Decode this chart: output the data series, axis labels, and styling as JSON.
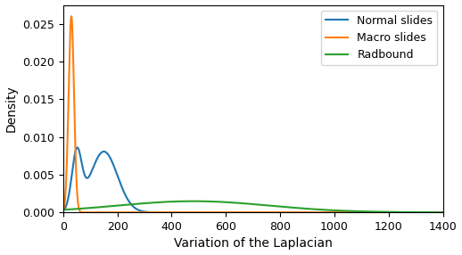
{
  "title": "",
  "xlabel": "Variation of the Laplacian",
  "ylabel": "Density",
  "xlim": [
    0,
    1400
  ],
  "ylim": [
    0,
    0.0275
  ],
  "yticks": [
    0.0,
    0.005,
    0.01,
    0.015,
    0.02,
    0.025
  ],
  "xticks": [
    0,
    200,
    400,
    600,
    800,
    1000,
    1200,
    1400
  ],
  "legend_labels": [
    "Normal slides",
    "Macro slides",
    "Radbound"
  ],
  "colors": [
    "#1f77b4",
    "#ff7f0e",
    "#2ca02c"
  ],
  "normal_params": {
    "peaks": [
      50,
      150
    ],
    "weights": [
      0.25,
      0.75
    ],
    "stds": [
      18,
      50
    ],
    "scale": 0.0086
  },
  "macro_params": {
    "peaks": [
      30
    ],
    "weights": [
      1.0
    ],
    "stds": [
      10
    ],
    "scale": 0.026
  },
  "radbound_params": {
    "peaks": [
      480
    ],
    "weights": [
      1.0
    ],
    "stds": [
      280
    ],
    "scale": 0.00148
  },
  "figsize": [
    5.18,
    2.86
  ],
  "dpi": 100
}
